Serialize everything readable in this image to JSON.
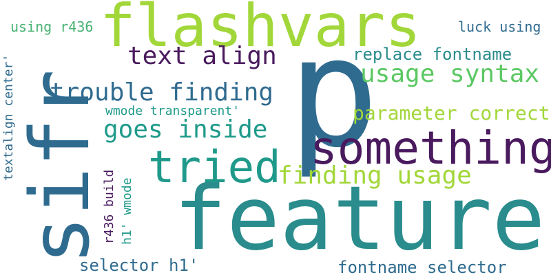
{
  "words": [
    "flashvars",
    "p",
    "sifr",
    "feature",
    "something",
    "tried",
    "text align",
    "usage syntax",
    "trouble finding",
    "goes inside",
    "finding usage",
    "replace fontname",
    "parameter correct",
    "luck using",
    "using r436",
    "wmode transparent'",
    "textalign center'",
    "r436 build",
    "h1' wmode",
    "selector h1'",
    "fontname selector"
  ],
  "colors": {
    "blue_teal": "#2d6f8e",
    "teal": "#1f9a8a",
    "lime": "#a2d73a",
    "purple": "#4a1a5e",
    "green": "#5bc863",
    "dark_blue": "#2f6b8f"
  }
}
